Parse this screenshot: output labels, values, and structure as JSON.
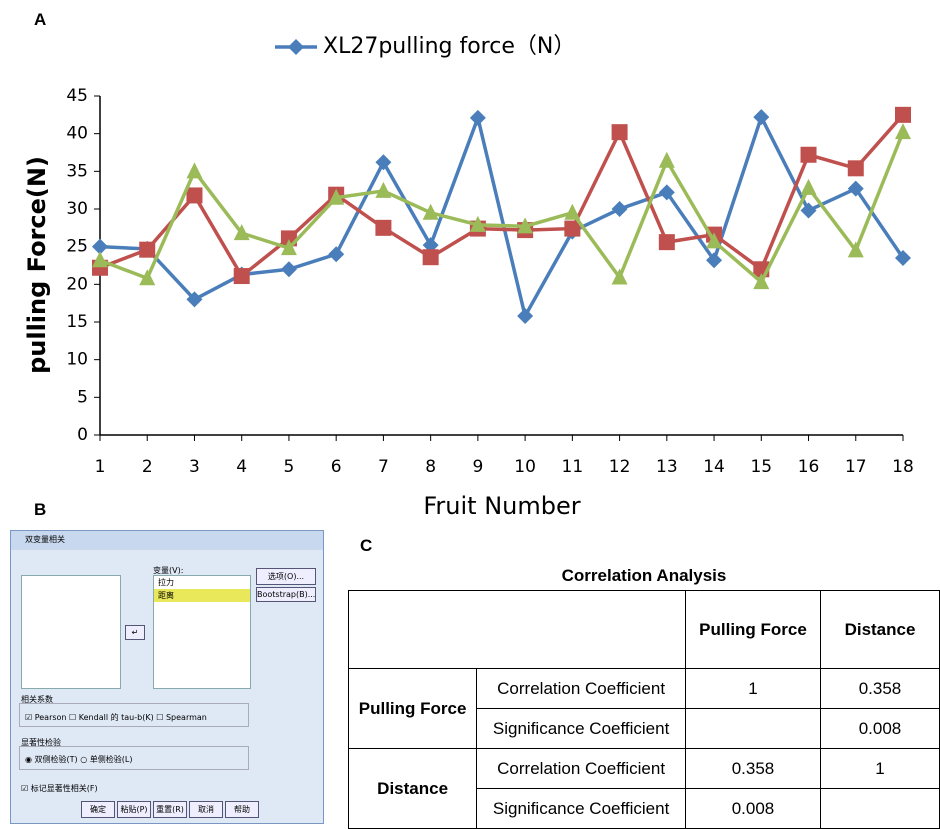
{
  "panel_labels": [
    "A",
    "B",
    "C"
  ],
  "chart_data": {
    "type": "line",
    "legend": "top",
    "x": [
      1,
      2,
      3,
      4,
      5,
      6,
      7,
      8,
      9,
      10,
      11,
      12,
      13,
      14,
      15,
      16,
      17,
      18
    ],
    "xlim": [
      1,
      18
    ],
    "xticks": [
      1,
      2,
      3,
      4,
      5,
      6,
      7,
      8,
      9,
      10,
      11,
      12,
      13,
      14,
      15,
      16,
      17,
      18
    ],
    "ylim": [
      0,
      45
    ],
    "yticks": [
      0,
      5,
      10,
      15,
      20,
      25,
      30,
      35,
      40,
      45
    ],
    "x_label": "Fruit Number",
    "y_label": "pulling Force(N)",
    "series": [
      {
        "name": "XL27pulling force（N）",
        "color": "#4a7ebb",
        "marker": "diamond",
        "values": [
          25,
          24.7,
          18,
          21.3,
          22,
          24,
          36.2,
          25.2,
          42.1,
          15.8,
          27,
          30,
          32.2,
          23.2,
          42.2,
          29.8,
          32.7,
          23.5
        ]
      },
      {
        "color": "#c0504d",
        "marker": "square",
        "values": [
          22.2,
          24.6,
          31.8,
          21.1,
          26.1,
          31.9,
          27.5,
          23.6,
          27.4,
          27.2,
          27.4,
          40.2,
          25.6,
          26.6,
          22,
          37.2,
          35.4,
          42.5
        ]
      },
      {
        "color": "#9bbb59",
        "marker": "triangle",
        "values": [
          23.2,
          20.8,
          35,
          26.8,
          24.8,
          31.5,
          32.4,
          29.5,
          27.9,
          27.7,
          29.5,
          20.9,
          36.4,
          25.7,
          20.3,
          32.8,
          24.5,
          40.2
        ]
      }
    ]
  },
  "dialog": {
    "title": "双变量相关",
    "variables_label": "变量(V):",
    "variables": [
      "拉力",
      "距离"
    ],
    "options_button": "选项(O)...",
    "bootstrap_button": "Bootstrap(B)...",
    "coef_group": "相关系数",
    "coef_options": [
      "Pearson",
      "Kendall 的 tau-b(K)",
      "Spearman"
    ],
    "test_group": "显著性检验",
    "test_options": [
      "双侧检验(T)",
      "单侧检验(L)"
    ],
    "flag": "标记显著性相关(F)",
    "buttons": [
      "确定",
      "粘贴(P)",
      "重置(R)",
      "取消",
      "帮助"
    ]
  },
  "table": {
    "title": "Correlation Analysis",
    "columns": [
      "Pulling Force",
      "Distance"
    ],
    "groups": [
      {
        "name": "Pulling Force",
        "rows": [
          {
            "label": "Correlation Coefficient",
            "cells": [
              1,
              0.358
            ]
          },
          {
            "label": "Significance Coefficient",
            "cells": [
              null,
              0.008
            ]
          }
        ]
      },
      {
        "name": "Distance",
        "rows": [
          {
            "label": "Correlation Coefficient",
            "cells": [
              0.358,
              1
            ]
          },
          {
            "label": "Significance Coefficient",
            "cells": [
              0.008,
              null
            ]
          }
        ]
      }
    ]
  }
}
